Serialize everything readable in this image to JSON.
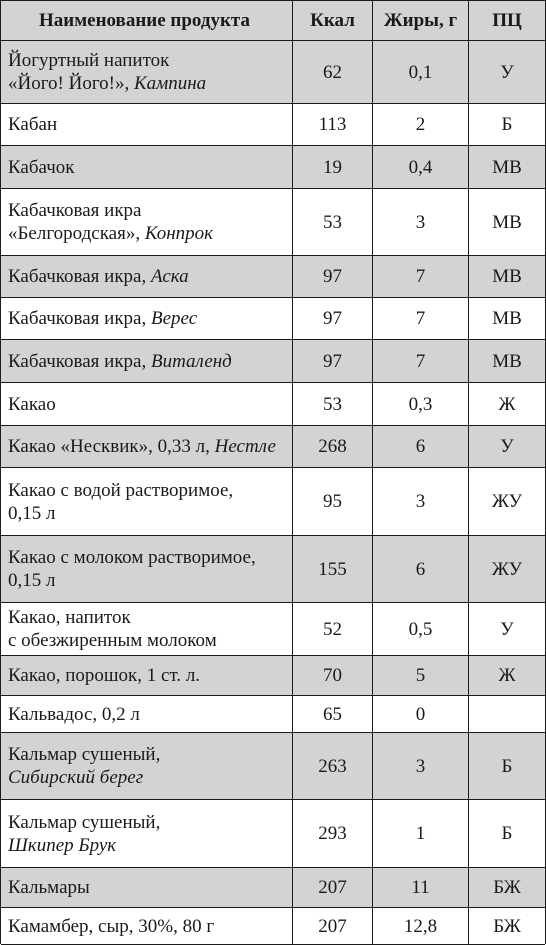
{
  "header": {
    "name": "Наименование продукта",
    "kcal": "Ккал",
    "fat": "Жиры, г",
    "pc": "ПЦ"
  },
  "rows": [
    {
      "line1": "Йогуртный напиток",
      "line2": "«Його! Його!», ",
      "brand": "Кампина",
      "kcal": "62",
      "fat": "0,1",
      "pc": "У"
    },
    {
      "line1": "Кабан",
      "line2": "",
      "brand": "",
      "kcal": "113",
      "fat": "2",
      "pc": "Б"
    },
    {
      "line1": "Кабачок",
      "line2": "",
      "brand": "",
      "kcal": "19",
      "fat": "0,4",
      "pc": "МВ"
    },
    {
      "line1": "Кабачковая икра",
      "line2": "«Белгородская», ",
      "brand": "Конпрок",
      "kcal": "53",
      "fat": "3",
      "pc": "МВ"
    },
    {
      "line1": "Кабачковая икра, ",
      "line2": "",
      "brand": "Аска",
      "kcal": "97",
      "fat": "7",
      "pc": "МВ"
    },
    {
      "line1": "Кабачковая икра, ",
      "line2": "",
      "brand": "Верес",
      "kcal": "97",
      "fat": "7",
      "pc": "МВ"
    },
    {
      "line1": "Кабачковая икра, ",
      "line2": "",
      "brand": "Виталенд",
      "kcal": "97",
      "fat": "7",
      "pc": "МВ"
    },
    {
      "line1": "Какао",
      "line2": "",
      "brand": "",
      "kcal": "53",
      "fat": "0,3",
      "pc": "Ж"
    },
    {
      "line1": "Какао «Несквик», 0,33 л, ",
      "line2": "",
      "brand": "Нестле",
      "kcal": "268",
      "fat": "6",
      "pc": "У"
    },
    {
      "line1": "Какао с водой растворимое,",
      "line2": "0,15 л",
      "brand": "",
      "kcal": "95",
      "fat": "3",
      "pc": "ЖУ"
    },
    {
      "line1": "Какао с молоком растворимое,",
      "line2": "0,15 л",
      "brand": "",
      "kcal": "155",
      "fat": "6",
      "pc": "ЖУ"
    },
    {
      "line1": "Какао, напиток",
      "line2": "с обезжиренным молоком",
      "brand": "",
      "kcal": "52",
      "fat": "0,5",
      "pc": "У"
    },
    {
      "line1": "Какао, порошок, 1 ст. л.",
      "line2": "",
      "brand": "",
      "kcal": "70",
      "fat": "5",
      "pc": "Ж"
    },
    {
      "line1": "Кальвадос, 0,2 л",
      "line2": "",
      "brand": "",
      "kcal": "65",
      "fat": "0",
      "pc": ""
    },
    {
      "line1": "Кальмар сушеный,",
      "line2": "",
      "brand": "Сибирский берег",
      "kcal": "263",
      "fat": "3",
      "pc": "Б"
    },
    {
      "line1": "Кальмар сушеный,",
      "line2": "",
      "brand": "Шкипер Брук",
      "kcal": "293",
      "fat": "1",
      "pc": "Б"
    },
    {
      "line1": "Кальмары",
      "line2": "",
      "brand": "",
      "kcal": "207",
      "fat": "11",
      "pc": "БЖ"
    },
    {
      "line1": "Камамбер, сыр, 30%, 80 г",
      "line2": "",
      "brand": "",
      "kcal": "207",
      "fat": "12,8",
      "pc": "БЖ"
    }
  ]
}
